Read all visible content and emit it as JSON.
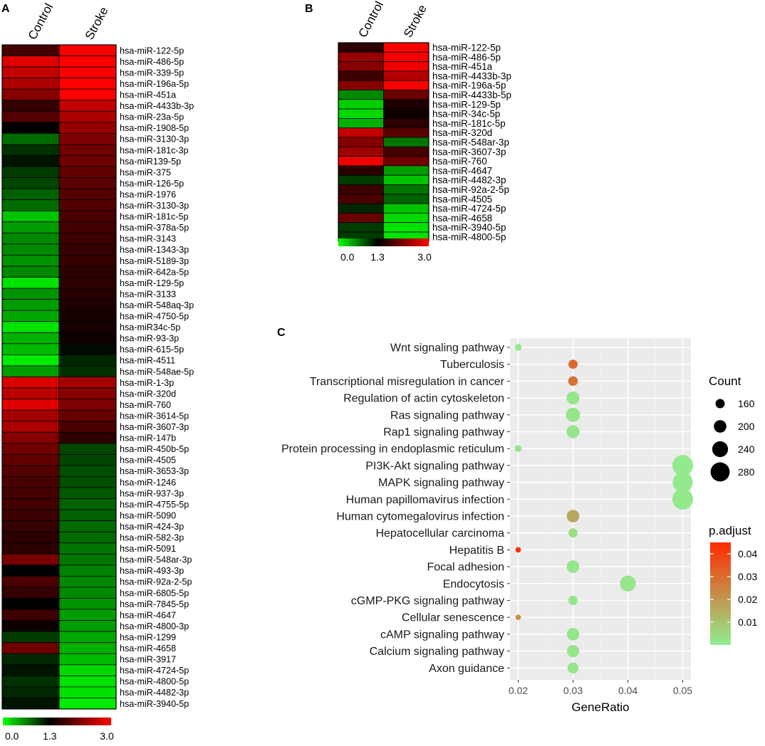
{
  "colors": {
    "green": "#00FF00",
    "black": "#000000",
    "red": "#FF0000",
    "panel_bg": "#EBEBEB",
    "grid": "#FFFFFF",
    "padj_low": "#90EE90",
    "padj_high": "#FF2A00"
  },
  "chart_data": [
    {
      "panel": "A",
      "type": "heatmap",
      "columns": [
        "Control",
        "Stroke"
      ],
      "colorbar": {
        "min": 0.0,
        "mid": 1.3,
        "max": 3.0,
        "ticks": [
          "0.0",
          "1.3",
          "3.0"
        ]
      },
      "rows": [
        {
          "name": "hsa-miR-122-5p",
          "values": [
            1.75,
            3.0
          ]
        },
        {
          "name": "hsa-miR-486-5p",
          "values": [
            2.8,
            3.0
          ]
        },
        {
          "name": "hsa-miR-339-5p",
          "values": [
            2.6,
            3.0
          ]
        },
        {
          "name": "hsa-miR-196a-5p",
          "values": [
            2.45,
            3.0
          ]
        },
        {
          "name": "hsa-miR-451a",
          "values": [
            2.2,
            3.0
          ]
        },
        {
          "name": "hsa-miR-4433b-3p",
          "values": [
            1.65,
            2.6
          ]
        },
        {
          "name": "hsa-miR-23a-5p",
          "values": [
            1.85,
            2.45
          ]
        },
        {
          "name": "hsa-miR-1908-5p",
          "values": [
            1.3,
            2.3
          ]
        },
        {
          "name": "hsa-miR-3130-3p",
          "values": [
            0.75,
            2.15
          ]
        },
        {
          "name": "hsa-miR-181c-3p",
          "values": [
            1.05,
            2.05
          ]
        },
        {
          "name": "hsa-miR139-5p",
          "values": [
            1.2,
            2.05
          ]
        },
        {
          "name": "hsa-miR-375",
          "values": [
            1.0,
            1.95
          ]
        },
        {
          "name": "hsa-miR-126-5p",
          "values": [
            0.95,
            1.9
          ]
        },
        {
          "name": "hsa-miR-1976",
          "values": [
            0.8,
            1.85
          ]
        },
        {
          "name": "hsa-miR-3130-3p",
          "values": [
            0.75,
            1.85
          ]
        },
        {
          "name": "hsa-miR-181c-5p",
          "values": [
            0.3,
            1.8
          ]
        },
        {
          "name": "hsa-miR-378a-5p",
          "values": [
            0.5,
            1.75
          ]
        },
        {
          "name": "hsa-miR-3143",
          "values": [
            0.6,
            1.7
          ]
        },
        {
          "name": "hsa-miR-1343-3p",
          "values": [
            0.6,
            1.65
          ]
        },
        {
          "name": "hsa-miR-5189-3p",
          "values": [
            0.55,
            1.65
          ]
        },
        {
          "name": "hsa-miR-642a-5p",
          "values": [
            0.6,
            1.6
          ]
        },
        {
          "name": "hsa-miR-129-5p",
          "values": [
            0.15,
            1.6
          ]
        },
        {
          "name": "hsa-miR-3133",
          "values": [
            0.55,
            1.55
          ]
        },
        {
          "name": "hsa-miR-548aq-3p",
          "values": [
            0.5,
            1.5
          ]
        },
        {
          "name": "hsa-miR-4750-5p",
          "values": [
            0.45,
            1.45
          ]
        },
        {
          "name": "hsa-miR34c-5p",
          "values": [
            0.15,
            1.45
          ]
        },
        {
          "name": "hsa-miR-93-3p",
          "values": [
            0.4,
            1.4
          ]
        },
        {
          "name": "hsa-miR-615-5p",
          "values": [
            0.35,
            1.25
          ]
        },
        {
          "name": "hsa-miR-4511",
          "values": [
            0.1,
            1.1
          ]
        },
        {
          "name": "hsa-miR-548ae-5p",
          "values": [
            0.5,
            1.05
          ]
        },
        {
          "name": "hsa-miR-1-3p",
          "values": [
            2.75,
            2.4
          ]
        },
        {
          "name": "hsa-miR-320d",
          "values": [
            2.55,
            2.2
          ]
        },
        {
          "name": "hsa-miR-760",
          "values": [
            2.8,
            2.15
          ]
        },
        {
          "name": "hsa-miR-3614-5p",
          "values": [
            2.4,
            2.0
          ]
        },
        {
          "name": "hsa-miR-3607-3p",
          "values": [
            2.45,
            1.8
          ]
        },
        {
          "name": "hsa-miR-147b",
          "values": [
            2.2,
            1.6
          ]
        },
        {
          "name": "hsa-miR-450b-5p",
          "values": [
            2.05,
            0.95
          ]
        },
        {
          "name": "hsa-miR-4505",
          "values": [
            1.95,
            0.95
          ]
        },
        {
          "name": "hsa-miR-3653-3p",
          "values": [
            1.85,
            0.9
          ]
        },
        {
          "name": "hsa-miR-1246",
          "values": [
            1.8,
            0.9
          ]
        },
        {
          "name": "hsa-miR-937-3p",
          "values": [
            1.75,
            0.85
          ]
        },
        {
          "name": "hsa-miR-4755-5p",
          "values": [
            1.75,
            0.8
          ]
        },
        {
          "name": "hsa-miR-5090",
          "values": [
            1.7,
            0.8
          ]
        },
        {
          "name": "hsa-miR-424-3p",
          "values": [
            1.65,
            0.75
          ]
        },
        {
          "name": "hsa-miR-582-3p",
          "values": [
            1.6,
            0.75
          ]
        },
        {
          "name": "hsa-miR-5091",
          "values": [
            1.6,
            0.7
          ]
        },
        {
          "name": "hsa-miR-548ar-3p",
          "values": [
            2.1,
            0.7
          ]
        },
        {
          "name": "hsa-miR-493-3p",
          "values": [
            1.3,
            0.65
          ]
        },
        {
          "name": "hsa-miR-92a-2-5p",
          "values": [
            1.8,
            0.6
          ]
        },
        {
          "name": "hsa-miR-6805-5p",
          "values": [
            1.65,
            0.6
          ]
        },
        {
          "name": "hsa-miR-7845-5p",
          "values": [
            1.3,
            0.55
          ]
        },
        {
          "name": "hsa-miR-4647",
          "values": [
            1.7,
            0.5
          ]
        },
        {
          "name": "hsa-miR-4800-3p",
          "values": [
            1.4,
            0.5
          ]
        },
        {
          "name": "hsa-miR-1299",
          "values": [
            1.0,
            0.45
          ]
        },
        {
          "name": "hsa-miR-4658",
          "values": [
            2.05,
            0.4
          ]
        },
        {
          "name": "hsa-miR-3917",
          "values": [
            1.1,
            0.35
          ]
        },
        {
          "name": "hsa-miR-4724-5p",
          "values": [
            1.2,
            0.2
          ]
        },
        {
          "name": "hsa-miR-4800-5p",
          "values": [
            1.05,
            0.15
          ]
        },
        {
          "name": "hsa-miR-4482-3p",
          "values": [
            1.1,
            0.15
          ]
        },
        {
          "name": "hsa-miR-3940-5p",
          "values": [
            1.2,
            0.1
          ]
        }
      ]
    },
    {
      "panel": "B",
      "type": "heatmap",
      "columns": [
        "Control",
        "Stroke"
      ],
      "colorbar": {
        "min": 0.0,
        "mid": 1.3,
        "max": 3.0,
        "ticks": [
          "0.0",
          "1.3",
          "3.0"
        ]
      },
      "rows": [
        {
          "name": "hsa-miR-122-5p",
          "values": [
            1.6,
            3.0
          ]
        },
        {
          "name": "hsa-miR-486-5p",
          "values": [
            2.3,
            2.95
          ]
        },
        {
          "name": "hsa-miR-451a",
          "values": [
            2.2,
            2.9
          ]
        },
        {
          "name": "hsa-miR-4433b-3p",
          "values": [
            1.7,
            2.5
          ]
        },
        {
          "name": "hsa-miR-196a-5p",
          "values": [
            2.2,
            3.0
          ]
        },
        {
          "name": "hsa-miR-4433b-5p",
          "values": [
            0.6,
            2.0
          ]
        },
        {
          "name": "hsa-miR-129-5p",
          "values": [
            0.25,
            1.5
          ]
        },
        {
          "name": "hsa-miR-34c-5p",
          "values": [
            0.2,
            1.4
          ]
        },
        {
          "name": "hsa-miR-181c-5p",
          "values": [
            0.4,
            1.6
          ]
        },
        {
          "name": "hsa-miR-320d",
          "values": [
            2.6,
            1.9
          ]
        },
        {
          "name": "hsa-miR-548ar-3p",
          "values": [
            2.2,
            0.7
          ]
        },
        {
          "name": "hsa-miR-3607-3p",
          "values": [
            2.35,
            1.75
          ]
        },
        {
          "name": "hsa-miR-760",
          "values": [
            2.9,
            2.05
          ]
        },
        {
          "name": "hsa-miR-4647",
          "values": [
            1.6,
            0.5
          ]
        },
        {
          "name": "hsa-miR-4482-3p",
          "values": [
            1.0,
            0.3
          ]
        },
        {
          "name": "hsa-miR-92a-2-5p",
          "values": [
            1.7,
            0.7
          ]
        },
        {
          "name": "hsa-miR-4505",
          "values": [
            1.8,
            0.8
          ]
        },
        {
          "name": "hsa-miR-4724-5p",
          "values": [
            1.1,
            0.3
          ]
        },
        {
          "name": "hsa-miR-4658",
          "values": [
            2.0,
            0.2
          ]
        },
        {
          "name": "hsa-miR-3940-5p",
          "values": [
            1.0,
            0.15
          ]
        },
        {
          "name": "hsa-miR-4800-5p",
          "values": [
            1.0,
            0.15
          ]
        }
      ]
    },
    {
      "panel": "C",
      "type": "scatter",
      "xlabel": "GeneRatio",
      "xlim": [
        0.0185,
        0.0515
      ],
      "xticks": [
        0.02,
        0.03,
        0.04,
        0.05
      ],
      "xtick_labels": [
        "0.02",
        "0.03",
        "0.04",
        "0.05"
      ],
      "points": [
        {
          "term": "Wnt signaling pathway",
          "x": 0.02,
          "count": 130,
          "padj": 0.001
        },
        {
          "term": "Tuberculosis",
          "x": 0.03,
          "count": 160,
          "padj": 0.031
        },
        {
          "term": "Transcriptional misregulation in cancer",
          "x": 0.03,
          "count": 165,
          "padj": 0.028
        },
        {
          "term": "Regulation of actin cytoskeleton",
          "x": 0.03,
          "count": 205,
          "padj": 0.002
        },
        {
          "term": "Ras signaling pathway",
          "x": 0.03,
          "count": 220,
          "padj": 0.002
        },
        {
          "term": "Rap1 signaling pathway",
          "x": 0.03,
          "count": 205,
          "padj": 0.002
        },
        {
          "term": "Protein processing in endoplasmic reticulum",
          "x": 0.02,
          "count": 130,
          "padj": 0.002
        },
        {
          "term": "PI3K-Akt signaling pathway",
          "x": 0.05,
          "count": 300,
          "padj": 0.001
        },
        {
          "term": "MAPK signaling pathway",
          "x": 0.05,
          "count": 290,
          "padj": 0.001
        },
        {
          "term": "Human papillomavirus infection",
          "x": 0.05,
          "count": 300,
          "padj": 0.001
        },
        {
          "term": "Human cytomegalovirus infection",
          "x": 0.03,
          "count": 200,
          "padj": 0.016
        },
        {
          "term": "Hepatocellular carcinoma",
          "x": 0.03,
          "count": 160,
          "padj": 0.004
        },
        {
          "term": "Hepatitis B",
          "x": 0.02,
          "count": 115,
          "padj": 0.044
        },
        {
          "term": "Focal adhesion",
          "x": 0.03,
          "count": 200,
          "padj": 0.002
        },
        {
          "term": "Endocytosis",
          "x": 0.04,
          "count": 240,
          "padj": 0.002
        },
        {
          "term": "cGMP-PKG signaling pathway",
          "x": 0.03,
          "count": 160,
          "padj": 0.002
        },
        {
          "term": "Cellular senescence",
          "x": 0.02,
          "count": 115,
          "padj": 0.022
        },
        {
          "term": "cAMP signaling pathway",
          "x": 0.03,
          "count": 200,
          "padj": 0.002
        },
        {
          "term": "Calcium signaling pathway",
          "x": 0.03,
          "count": 195,
          "padj": 0.002
        },
        {
          "term": "Axon guidance",
          "x": 0.03,
          "count": 180,
          "padj": 0.002
        }
      ],
      "legend_count": {
        "title": "Count",
        "values": [
          160,
          200,
          240,
          280
        ],
        "labels": [
          "160",
          "200",
          "240",
          "280"
        ]
      },
      "legend_padj": {
        "title": "p.adjust",
        "min": 0.0,
        "max": 0.045,
        "ticks": [
          0.01,
          0.02,
          0.03,
          0.04
        ],
        "tick_labels": [
          "0.01",
          "0.02",
          "0.03",
          "0.04"
        ]
      }
    }
  ],
  "panel_labels": {
    "a": "A",
    "b": "B",
    "c": "C"
  }
}
